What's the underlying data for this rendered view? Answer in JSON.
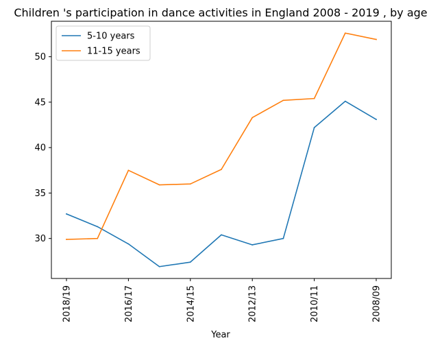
{
  "chart_data": {
    "type": "line",
    "title": "Children 's participation in dance activities in England 2008 - 2019 , by age",
    "xlabel": "Year",
    "ylabel": "",
    "x": [
      "2018/19",
      "2017/18",
      "2016/17",
      "2015/16",
      "2014/15",
      "2013/14",
      "2012/13",
      "2011/12",
      "2010/11",
      "2009/10",
      "2008/09"
    ],
    "x_tick_labels": [
      "2018/19",
      "2016/17",
      "2014/15",
      "2012/13",
      "2010/11",
      "2008/09"
    ],
    "y_ticks": [
      30,
      35,
      40,
      45,
      50
    ],
    "ylim": [
      25.6,
      53.9
    ],
    "grid": false,
    "legend_position": "top-left",
    "series": [
      {
        "name": "5-10 years",
        "color": "#1f77b4",
        "values": [
          32.7,
          31.3,
          29.4,
          26.9,
          27.4,
          30.4,
          29.3,
          30.0,
          42.2,
          45.1,
          43.1
        ]
      },
      {
        "name": "11-15 years",
        "color": "#ff7f0e",
        "values": [
          29.9,
          30.0,
          37.5,
          35.9,
          36.0,
          37.6,
          43.3,
          45.2,
          45.4,
          52.6,
          51.9
        ]
      }
    ]
  }
}
